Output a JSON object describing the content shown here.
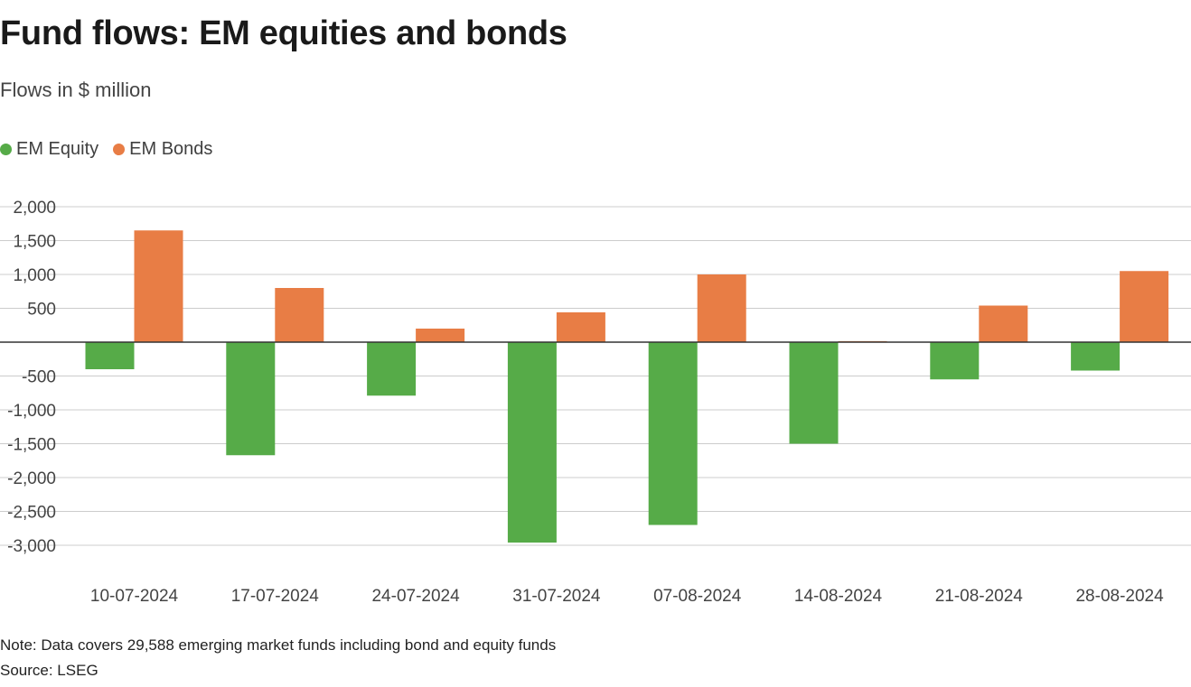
{
  "title": "Fund flows: EM equities and bonds",
  "subtitle": "Flows in $ million",
  "note": "Note: Data covers 29,588 emerging market funds including bond and equity funds",
  "source": "Source: LSEG",
  "colors": {
    "equity": "#56ab48",
    "bonds": "#e87d45",
    "grid": "#cccccc",
    "zero_line": "#333333"
  },
  "chart_data": {
    "type": "bar",
    "title": "Fund flows: EM equities and bonds",
    "subtitle": "Flows in $ million",
    "xlabel": "",
    "ylabel": "",
    "categories": [
      "10-07-2024",
      "17-07-2024",
      "24-07-2024",
      "31-07-2024",
      "07-08-2024",
      "14-08-2024",
      "21-08-2024",
      "28-08-2024"
    ],
    "series": [
      {
        "name": "EM Equity",
        "color": "#56ab48",
        "values": [
          -400,
          -1670,
          -790,
          -2960,
          -2700,
          -1500,
          -550,
          -420
        ]
      },
      {
        "name": "EM Bonds",
        "color": "#e87d45",
        "values": [
          1650,
          800,
          200,
          440,
          1000,
          15,
          540,
          1050
        ]
      }
    ],
    "ylim": [
      -3000,
      2000
    ],
    "yticks": [
      2000,
      1500,
      1000,
      500,
      -500,
      -1000,
      -1500,
      -2000,
      -2500,
      -3000
    ],
    "ytick_labels": [
      "2,000",
      "1,500",
      "1,000",
      "500",
      "-500",
      "-1,000",
      "-1,500",
      "-2,000",
      "-2,500",
      "-3,000"
    ],
    "grid": true,
    "legend_position": "top-left"
  }
}
